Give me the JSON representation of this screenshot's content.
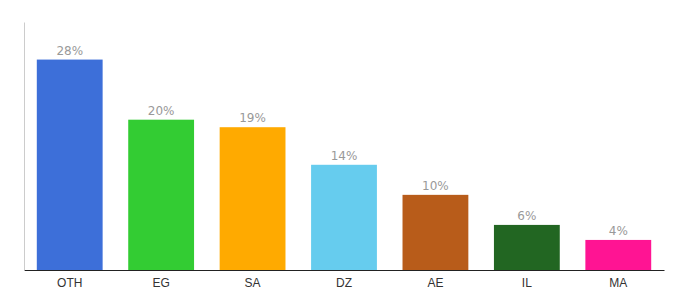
{
  "chart_data": {
    "type": "bar",
    "categories": [
      "OTH",
      "EG",
      "SA",
      "DZ",
      "AE",
      "IL",
      "MA"
    ],
    "values": [
      28,
      20,
      19,
      14,
      10,
      6,
      4
    ],
    "value_labels": [
      "28%",
      "20%",
      "19%",
      "14%",
      "10%",
      "6%",
      "4%"
    ],
    "colors": [
      "#3d6fd9",
      "#33cc33",
      "#ffaa00",
      "#66ccee",
      "#b85c1a",
      "#226622",
      "#ff1493"
    ],
    "ylim": [
      0,
      33
    ],
    "grid": false,
    "data_labels": true,
    "tick_labels": "x"
  }
}
